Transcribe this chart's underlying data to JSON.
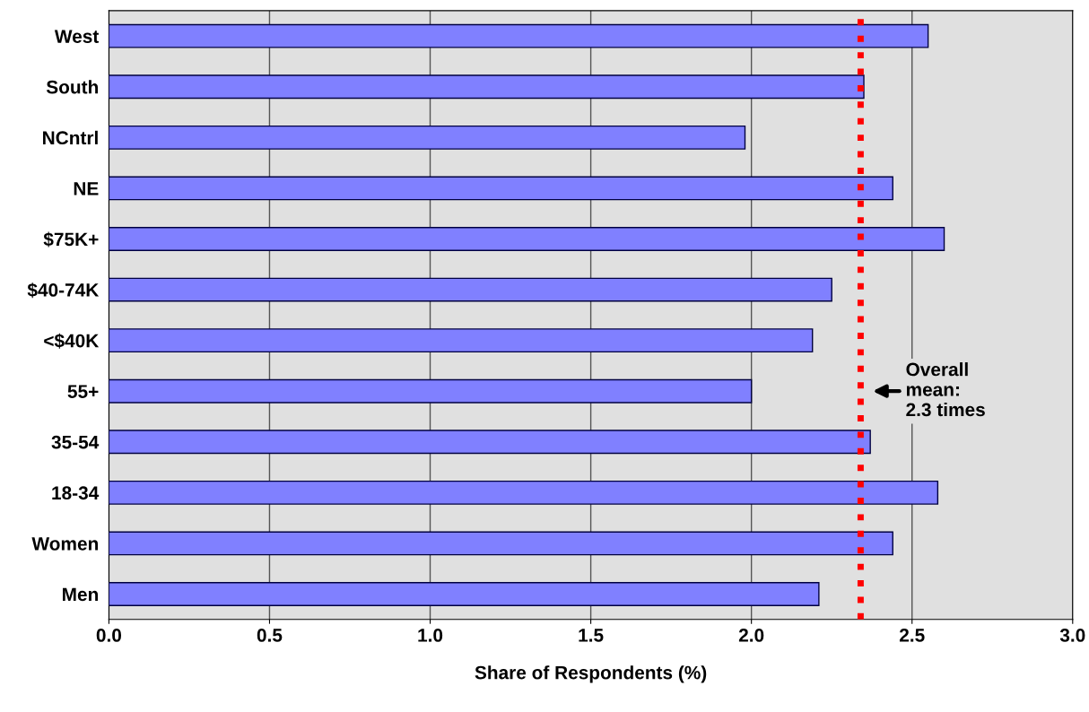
{
  "chart_data": {
    "type": "bar",
    "orientation": "horizontal",
    "xlabel": "Share of Respondents (%)",
    "categories": [
      "West",
      "South",
      "NCntrl",
      "NE",
      "$75K+",
      "$40-74K",
      "<$40K",
      "55+",
      "35-54",
      "18-34",
      "Women",
      "Men"
    ],
    "values": [
      2.55,
      2.35,
      1.98,
      2.44,
      2.6,
      2.25,
      2.19,
      2.0,
      2.37,
      2.58,
      2.44,
      2.21
    ],
    "color": "#8080ff",
    "xlim": [
      0,
      3
    ],
    "xticks": [
      {
        "value": 0,
        "label": "0.0"
      },
      {
        "value": 0.5,
        "label": "0.5"
      },
      {
        "value": 1,
        "label": "1.0"
      },
      {
        "value": 1.5,
        "label": "1.5"
      },
      {
        "value": 2,
        "label": "2.0"
      },
      {
        "value": 2.5,
        "label": "2.5"
      },
      {
        "value": 3,
        "label": "3.0"
      }
    ],
    "grid": "x",
    "ref_lines": [
      {
        "axis": "x",
        "value": 2.34,
        "label": "Overall\nmean:\n2.3 times",
        "color": "#ff0000",
        "line_style": "dotted"
      }
    ]
  }
}
